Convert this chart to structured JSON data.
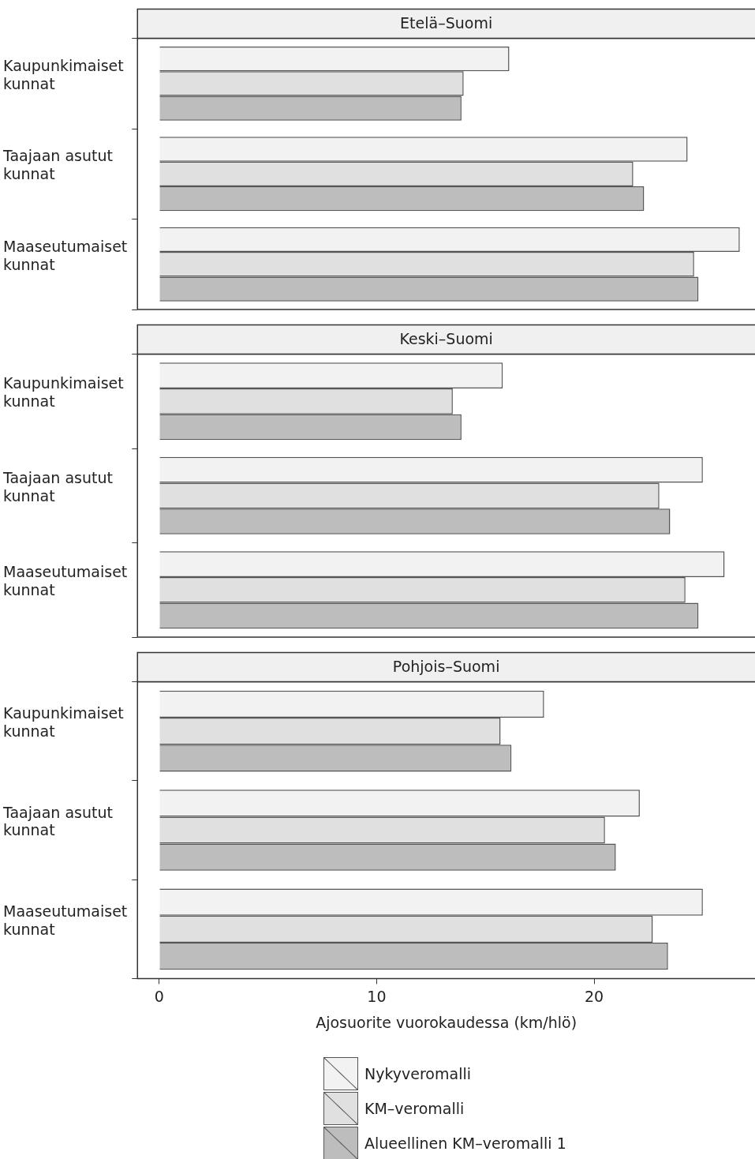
{
  "chart_data": [
    {
      "type": "bar",
      "orientation": "horizontal",
      "title": "Etelä–Suomi",
      "categories": [
        "Kaupunkimaiset kunnat",
        "Taajaan asutut kunnat",
        "Maaseutumaiset kunnat"
      ],
      "xlim": [
        -1,
        27.4
      ],
      "xticks": [
        0,
        10,
        20
      ],
      "tick_labels": "y",
      "grid": false,
      "legend": false,
      "series": [
        {
          "color": "#f2f2f2",
          "values": [
            16.1,
            24.3,
            26.7
          ]
        },
        {
          "color": "#e0e0e0",
          "values": [
            14.0,
            21.8,
            24.6
          ]
        },
        {
          "color": "#bdbdbd",
          "values": [
            13.9,
            22.3,
            24.8
          ]
        }
      ]
    },
    {
      "type": "bar",
      "orientation": "horizontal",
      "title": "Keski–Suomi",
      "categories": [
        "Kaupunkimaiset kunnat",
        "Taajaan asutut kunnat",
        "Maaseutumaiset kunnat"
      ],
      "xlim": [
        -1,
        27.4
      ],
      "xticks": [
        0,
        10,
        20
      ],
      "tick_labels": "y",
      "grid": false,
      "legend": false,
      "series": [
        {
          "color": "#f2f2f2",
          "values": [
            15.8,
            25.0,
            26.0
          ]
        },
        {
          "color": "#e0e0e0",
          "values": [
            13.5,
            23.0,
            24.2
          ]
        },
        {
          "color": "#bdbdbd",
          "values": [
            13.9,
            23.5,
            24.8
          ]
        }
      ]
    },
    {
      "type": "bar",
      "orientation": "horizontal",
      "title": "Pohjois–Suomi",
      "xlabel": "Ajosuorite vuorokaudessa (km/hlö)",
      "categories": [
        "Kaupunkimaiset kunnat",
        "Taajaan asutut kunnat",
        "Maaseutumaiset kunnat"
      ],
      "xlim": [
        -1,
        27.4
      ],
      "xticks": [
        0,
        10,
        20
      ],
      "grid": false,
      "legend": "bottom",
      "series": [
        {
          "name": "Nykyveromalli",
          "color": "#f2f2f2",
          "values": [
            17.7,
            22.1,
            25.0
          ]
        },
        {
          "name": "KM–veromalli",
          "color": "#e0e0e0",
          "values": [
            15.7,
            20.5,
            22.7
          ]
        },
        {
          "name": "Alueellinen KM–veromalli 1",
          "color": "#bdbdbd",
          "values": [
            16.2,
            21.0,
            23.4
          ]
        }
      ]
    }
  ]
}
